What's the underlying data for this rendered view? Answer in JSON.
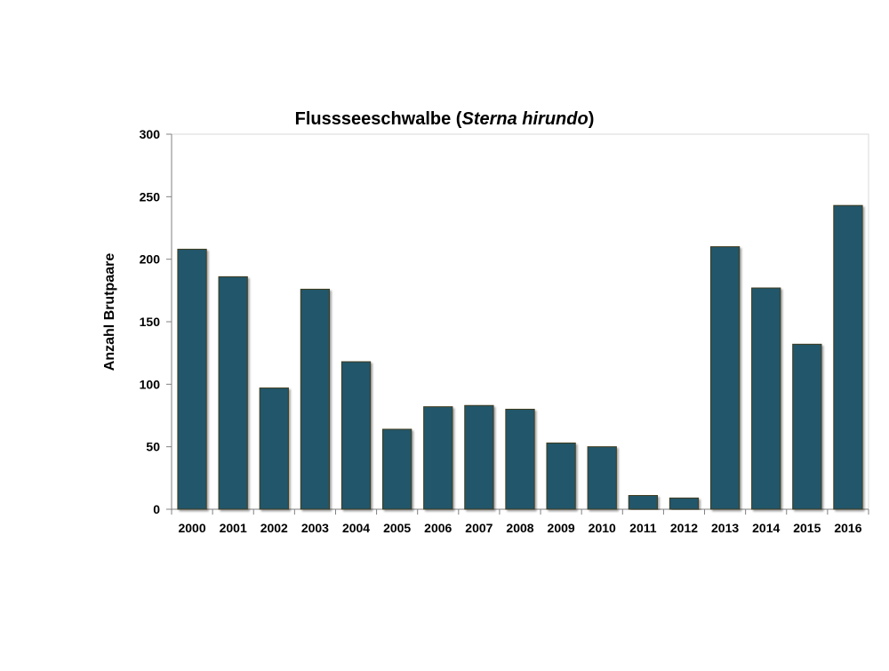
{
  "chart_data": {
    "type": "bar",
    "title_main": "Flussseeschwalbe (",
    "title_italic": "Sterna hirundo",
    "title_end": ")",
    "xlabel": "",
    "ylabel": "Anzahl Brutpaare",
    "ylim": [
      0,
      300
    ],
    "yticks": [
      "0",
      "50",
      "100",
      "150",
      "200",
      "250",
      "300"
    ],
    "categories": [
      "2000",
      "2001",
      "2002",
      "2003",
      "2004",
      "2005",
      "2006",
      "2007",
      "2008",
      "2009",
      "2010",
      "2011",
      "2012",
      "2013",
      "2014",
      "2015",
      "2016"
    ],
    "values": [
      208,
      186,
      97,
      176,
      118,
      64,
      82,
      83,
      80,
      53,
      50,
      11,
      9,
      210,
      177,
      132,
      243
    ],
    "bar_color": "#21576A",
    "grid": false,
    "legend": "none"
  }
}
